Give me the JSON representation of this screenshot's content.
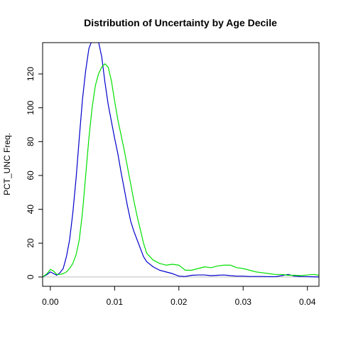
{
  "chart_data": {
    "type": "line",
    "title": "Distribution of Uncertainty by Age Decile",
    "xlabel": "",
    "ylabel": "PCT_UNC Freq.",
    "xlim": [
      -0.0012,
      0.0418
    ],
    "ylim": [
      -5.5,
      138.5
    ],
    "x_ticks": [
      0.0,
      0.01,
      0.02,
      0.03,
      0.04
    ],
    "x_tick_labels": [
      "0.00",
      "0.01",
      "0.02",
      "0.03",
      "0.04"
    ],
    "y_ticks": [
      0,
      20,
      40,
      60,
      80,
      100,
      120
    ],
    "y_tick_labels": [
      "0",
      "20",
      "40",
      "60",
      "80",
      "100",
      "120"
    ],
    "grid": false,
    "legend": "none",
    "baseline": 0,
    "series": [
      {
        "color": "#0000cc",
        "x": [
          -0.0012,
          -0.0005,
          0.0,
          0.0005,
          0.001,
          0.0015,
          0.002,
          0.0025,
          0.003,
          0.0035,
          0.004,
          0.0045,
          0.005,
          0.0055,
          0.006,
          0.0065,
          0.007,
          0.0075,
          0.008,
          0.0085,
          0.009,
          0.0095,
          0.01,
          0.0105,
          0.011,
          0.0115,
          0.012,
          0.0125,
          0.013,
          0.0135,
          0.014,
          0.0145,
          0.015,
          0.016,
          0.017,
          0.018,
          0.019,
          0.02,
          0.021,
          0.022,
          0.023,
          0.024,
          0.025,
          0.026,
          0.027,
          0.028,
          0.029,
          0.03,
          0.031,
          0.032,
          0.033,
          0.034,
          0.035,
          0.036,
          0.037,
          0.038,
          0.039,
          0.04,
          0.041,
          0.0418
        ],
        "y": [
          0,
          1.5,
          3,
          2,
          1,
          2.5,
          5,
          12,
          22,
          38,
          58,
          82,
          105,
          122,
          135,
          140,
          140,
          139,
          130,
          115,
          102,
          92,
          82,
          73,
          62,
          52,
          42,
          33,
          27,
          22,
          17,
          12,
          9,
          6,
          4,
          3,
          2,
          0.5,
          0.3,
          1,
          1.2,
          1.2,
          0.8,
          1,
          1.2,
          0.8,
          0.5,
          0.5,
          0.3,
          0.3,
          0.3,
          0.2,
          0.2,
          0.8,
          1.5,
          0.5,
          0.3,
          0.2,
          0.1,
          0
        ]
      },
      {
        "color": "#00e000",
        "x": [
          -0.0012,
          -0.0005,
          0.0,
          0.0005,
          0.001,
          0.0015,
          0.002,
          0.0025,
          0.003,
          0.0035,
          0.004,
          0.0045,
          0.005,
          0.0055,
          0.006,
          0.0065,
          0.007,
          0.0075,
          0.008,
          0.0085,
          0.009,
          0.0095,
          0.01,
          0.0105,
          0.011,
          0.0115,
          0.012,
          0.0125,
          0.013,
          0.0135,
          0.014,
          0.0145,
          0.015,
          0.016,
          0.017,
          0.018,
          0.019,
          0.02,
          0.021,
          0.022,
          0.023,
          0.024,
          0.025,
          0.026,
          0.027,
          0.028,
          0.029,
          0.03,
          0.031,
          0.032,
          0.033,
          0.034,
          0.035,
          0.036,
          0.037,
          0.038,
          0.039,
          0.04,
          0.041,
          0.0418
        ],
        "y": [
          0,
          2,
          4.5,
          3.5,
          1.5,
          1.5,
          2,
          3,
          5,
          8,
          13,
          22,
          38,
          60,
          82,
          100,
          113,
          120,
          124,
          126,
          124,
          116,
          104,
          93,
          84,
          75,
          65,
          55,
          45,
          36,
          28,
          20,
          14,
          10,
          8,
          7,
          7.5,
          7,
          4,
          4,
          5,
          6,
          5.5,
          6.5,
          7,
          7,
          5.5,
          5,
          4,
          3,
          2.5,
          2,
          1.5,
          1.5,
          1,
          1,
          0.8,
          1.2,
          1.5,
          1
        ]
      }
    ]
  }
}
